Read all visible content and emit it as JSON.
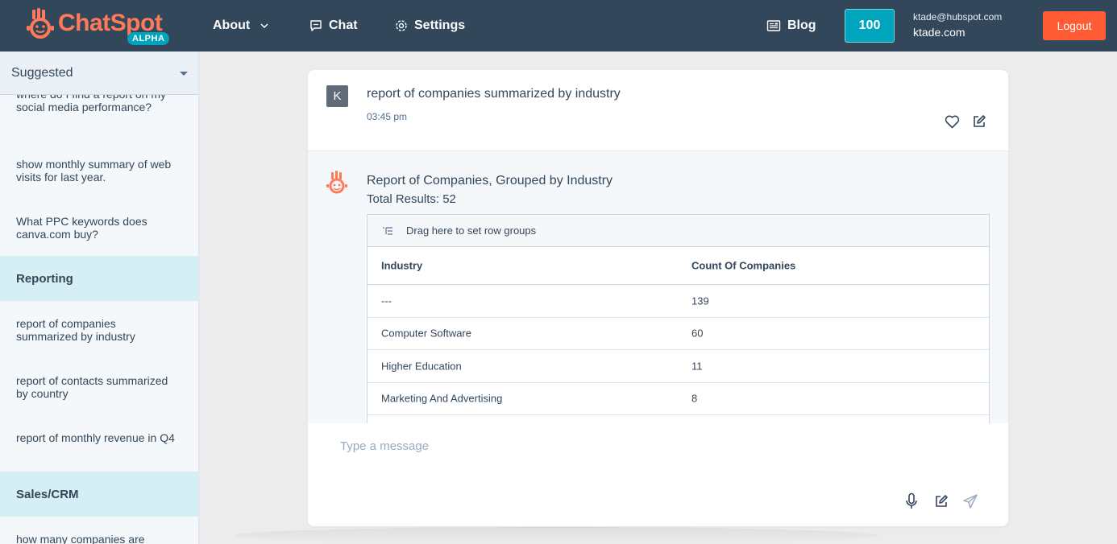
{
  "brand": {
    "name": "ChatSpot",
    "badge": "ALPHA"
  },
  "nav": {
    "about": "About",
    "chat": "Chat",
    "settings": "Settings",
    "blog": "Blog"
  },
  "account": {
    "credits": "100",
    "email": "ktade@hubspot.com",
    "domain": "ktade.com",
    "logout": "Logout"
  },
  "sidebar": {
    "select_value": "Suggested",
    "items": [
      {
        "type": "item",
        "label": "where do I find a report on my social media performance?"
      },
      {
        "type": "item",
        "label": "show monthly summary of web visits for last year."
      },
      {
        "type": "item",
        "label": "What PPC keywords does canva.com buy?"
      },
      {
        "type": "section",
        "label": "Reporting"
      },
      {
        "type": "item",
        "label": "report of companies summarized by industry"
      },
      {
        "type": "item",
        "label": "report of contacts summarized by country"
      },
      {
        "type": "item",
        "label": "report of monthly revenue in Q4"
      },
      {
        "type": "section",
        "label": "Sales/CRM"
      },
      {
        "type": "item",
        "label": "how many companies are"
      }
    ]
  },
  "conversation": {
    "user_avatar": "K",
    "user_message": "report of companies summarized by industry",
    "user_time": "03:45 pm",
    "bot_title": "Report of Companies, Grouped by Industry",
    "bot_total": "Total Results: 52",
    "grid": {
      "drag_hint": "Drag here to set row groups",
      "columns": [
        "Industry",
        "Count Of Companies"
      ],
      "rows": [
        [
          "---",
          "139"
        ],
        [
          "Computer Software",
          "60"
        ],
        [
          "Higher Education",
          "11"
        ],
        [
          "Marketing And Advertising",
          "8"
        ]
      ]
    }
  },
  "composer": {
    "placeholder": "Type a message"
  },
  "icons": {
    "about_chevron": "chevron-down-icon",
    "chat": "chat-bubble-icon",
    "settings": "gear-icon",
    "blog": "newspaper-icon",
    "like": "heart-icon",
    "edit": "edit-icon",
    "mic": "microphone-icon",
    "send": "send-icon",
    "drag": "row-group-icon"
  },
  "colors": {
    "topbar": "#33475b",
    "accent": "#00a4bd",
    "brand_orange": "#ff7a59",
    "logout": "#ff5c35",
    "section_bg": "#d6eff4"
  }
}
